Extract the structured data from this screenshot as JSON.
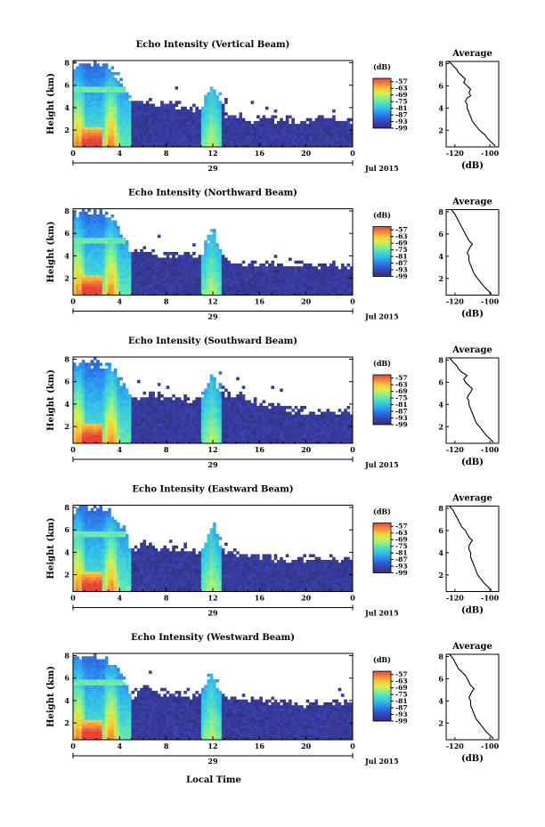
{
  "figure": {
    "bottom_xlabel": "Local Time"
  },
  "colors": {
    "colormap": [
      "#2e2f7a",
      "#3a3fa8",
      "#2c5fd8",
      "#2b8ff0",
      "#34c1e8",
      "#4de0c4",
      "#8ff08a",
      "#d8f04a",
      "#f8c63a",
      "#f7833a",
      "#e8423a"
    ]
  },
  "chart_data": [
    {
      "type": "heatmap",
      "title": "Echo Intensity (Vertical Beam)",
      "ylabel": "Height (km)",
      "xlabel": "",
      "x_ticks": [
        "0",
        "4",
        "8",
        "12",
        "16",
        "20",
        "0"
      ],
      "x_range": [
        0,
        24
      ],
      "y_ticks": [
        "2",
        "4",
        "6",
        "8"
      ],
      "y_range": [
        0.5,
        8.2
      ],
      "date_tick": "29",
      "date_label": "Jul 2015",
      "colorbar": {
        "unit": "(dB)",
        "ticks": [
          "-57",
          "-63",
          "-69",
          "-75",
          "-81",
          "-87",
          "-93",
          "-99"
        ],
        "range": [
          -99,
          -54
        ]
      },
      "envelope": [
        {
          "t": 0,
          "h": 7.8
        },
        {
          "t": 1,
          "h": 8.0
        },
        {
          "t": 2,
          "h": 8.0
        },
        {
          "t": 3,
          "h": 8.0
        },
        {
          "t": 4,
          "h": 6.5
        },
        {
          "t": 4.6,
          "h": 5.5
        },
        {
          "t": 5,
          "h": 4.5
        },
        {
          "t": 6,
          "h": 4.6
        },
        {
          "t": 7,
          "h": 4.4
        },
        {
          "t": 8,
          "h": 4.3
        },
        {
          "t": 9,
          "h": 4.2
        },
        {
          "t": 10,
          "h": 4.0
        },
        {
          "t": 11,
          "h": 3.9
        },
        {
          "t": 11.7,
          "h": 5.5
        },
        {
          "t": 12,
          "h": 6.5
        },
        {
          "t": 12.4,
          "h": 5.0
        },
        {
          "t": 13,
          "h": 3.6
        },
        {
          "t": 14,
          "h": 3.2
        },
        {
          "t": 15,
          "h": 3.0
        },
        {
          "t": 16,
          "h": 3.0
        },
        {
          "t": 17,
          "h": 3.0
        },
        {
          "t": 18,
          "h": 3.0
        },
        {
          "t": 19,
          "h": 2.8
        },
        {
          "t": 20,
          "h": 2.8
        },
        {
          "t": 21,
          "h": 3.0
        },
        {
          "t": 22,
          "h": 3.0
        },
        {
          "t": 23,
          "h": 3.0
        },
        {
          "t": 24,
          "h": 3.0
        }
      ],
      "bright_layer_km": 5.6,
      "average_profile": {
        "title": "Average",
        "xlabel": "(dB)",
        "x_ticks": [
          "-120",
          "-100"
        ],
        "x_range": [
          -125,
          -95
        ],
        "y_ticks": [
          "2",
          "4",
          "6",
          "8"
        ],
        "y_range": [
          0.5,
          8.2
        ],
        "x": [
          -97,
          -99,
          -101,
          -103,
          -106,
          -108,
          -110,
          -111,
          -112,
          -113,
          -113,
          -114,
          -113,
          -111,
          -112,
          -111,
          -113,
          -115,
          -114,
          -116,
          -118,
          -119,
          -121,
          -122,
          -124
        ],
        "y": [
          0.6,
          0.9,
          1.2,
          1.6,
          2.0,
          2.4,
          2.8,
          3.2,
          3.6,
          4.0,
          4.3,
          4.6,
          4.9,
          5.1,
          5.4,
          5.7,
          6.0,
          6.3,
          6.6,
          6.9,
          7.2,
          7.5,
          7.8,
          8.0,
          8.2
        ]
      }
    },
    {
      "type": "heatmap",
      "title": "Echo Intensity (Northward Beam)",
      "ylabel": "Height (km)",
      "xlabel": "",
      "x_ticks": [
        "0",
        "4",
        "8",
        "12",
        "16",
        "20",
        "0"
      ],
      "x_range": [
        0,
        24
      ],
      "y_ticks": [
        "2",
        "4",
        "6",
        "8"
      ],
      "y_range": [
        0.5,
        8.2
      ],
      "date_tick": "29",
      "date_label": "Jul 2015",
      "colorbar": {
        "unit": "(dB)",
        "ticks": [
          "-57",
          "-63",
          "-69",
          "-75",
          "-81",
          "-87",
          "-93",
          "-99"
        ],
        "range": [
          -99,
          -54
        ]
      },
      "envelope": [
        {
          "t": 0,
          "h": 7.8
        },
        {
          "t": 1,
          "h": 8.0
        },
        {
          "t": 2,
          "h": 7.9
        },
        {
          "t": 3,
          "h": 7.8
        },
        {
          "t": 4,
          "h": 6.5
        },
        {
          "t": 4.6,
          "h": 5.5
        },
        {
          "t": 5,
          "h": 4.2
        },
        {
          "t": 6,
          "h": 4.6
        },
        {
          "t": 7,
          "h": 4.2
        },
        {
          "t": 8,
          "h": 4.2
        },
        {
          "t": 9,
          "h": 4.0
        },
        {
          "t": 10,
          "h": 4.2
        },
        {
          "t": 11,
          "h": 4.0
        },
        {
          "t": 11.7,
          "h": 5.8
        },
        {
          "t": 12,
          "h": 6.8
        },
        {
          "t": 12.4,
          "h": 5.0
        },
        {
          "t": 13,
          "h": 3.8
        },
        {
          "t": 14,
          "h": 3.6
        },
        {
          "t": 15,
          "h": 3.4
        },
        {
          "t": 16,
          "h": 3.4
        },
        {
          "t": 17,
          "h": 3.4
        },
        {
          "t": 18,
          "h": 3.4
        },
        {
          "t": 19,
          "h": 3.2
        },
        {
          "t": 20,
          "h": 3.2
        },
        {
          "t": 21,
          "h": 3.2
        },
        {
          "t": 22,
          "h": 3.2
        },
        {
          "t": 23,
          "h": 3.2
        },
        {
          "t": 24,
          "h": 3.2
        }
      ],
      "bright_layer_km": 5.4,
      "average_profile": {
        "title": "Average",
        "xlabel": "(dB)",
        "x_ticks": [
          "-120",
          "-100"
        ],
        "x_range": [
          -125,
          -95
        ],
        "y_ticks": [
          "2",
          "4",
          "6",
          "8"
        ],
        "y_range": [
          0.5,
          8.2
        ],
        "x": [
          -99,
          -101,
          -103,
          -105,
          -107,
          -109,
          -110,
          -111,
          -112,
          -112,
          -113,
          -112,
          -111,
          -110,
          -112,
          -113,
          -114,
          -115,
          -116,
          -117,
          -118,
          -119,
          -120,
          -121,
          -122
        ],
        "y": [
          0.6,
          0.9,
          1.2,
          1.6,
          2.0,
          2.4,
          2.8,
          3.2,
          3.6,
          4.0,
          4.3,
          4.6,
          4.9,
          5.1,
          5.4,
          5.7,
          6.0,
          6.3,
          6.6,
          6.9,
          7.2,
          7.5,
          7.8,
          8.0,
          8.2
        ]
      }
    },
    {
      "type": "heatmap",
      "title": "Echo Intensity (Southward Beam)",
      "ylabel": "Height (km)",
      "xlabel": "",
      "x_ticks": [
        "0",
        "4",
        "8",
        "12",
        "16",
        "20",
        "0"
      ],
      "x_range": [
        0,
        24
      ],
      "y_ticks": [
        "2",
        "4",
        "6",
        "8"
      ],
      "y_range": [
        0.5,
        8.2
      ],
      "date_tick": "29",
      "date_label": "Jul 2015",
      "colorbar": {
        "unit": "(dB)",
        "ticks": [
          "-57",
          "-63",
          "-69",
          "-75",
          "-81",
          "-87",
          "-93",
          "-99"
        ],
        "range": [
          -99,
          -54
        ]
      },
      "envelope": [
        {
          "t": 0,
          "h": 7.6
        },
        {
          "t": 1,
          "h": 7.8
        },
        {
          "t": 2,
          "h": 7.6
        },
        {
          "t": 3,
          "h": 7.4
        },
        {
          "t": 4,
          "h": 6.2
        },
        {
          "t": 4.6,
          "h": 5.3
        },
        {
          "t": 5,
          "h": 4.2
        },
        {
          "t": 6,
          "h": 5.2
        },
        {
          "t": 7,
          "h": 4.8
        },
        {
          "t": 8,
          "h": 4.6
        },
        {
          "t": 9,
          "h": 4.6
        },
        {
          "t": 10,
          "h": 4.4
        },
        {
          "t": 11,
          "h": 4.6
        },
        {
          "t": 11.7,
          "h": 6.0
        },
        {
          "t": 12,
          "h": 6.8
        },
        {
          "t": 12.4,
          "h": 5.4
        },
        {
          "t": 13,
          "h": 5.2
        },
        {
          "t": 14,
          "h": 4.8
        },
        {
          "t": 15,
          "h": 4.6
        },
        {
          "t": 16,
          "h": 4.2
        },
        {
          "t": 17,
          "h": 4.0
        },
        {
          "t": 18,
          "h": 3.6
        },
        {
          "t": 19,
          "h": 3.4
        },
        {
          "t": 20,
          "h": 3.4
        },
        {
          "t": 21,
          "h": 3.4
        },
        {
          "t": 22,
          "h": 3.4
        },
        {
          "t": 23,
          "h": 3.4
        },
        {
          "t": 24,
          "h": 3.4
        }
      ],
      "bright_layer_km": 1.6,
      "average_profile": {
        "title": "Average",
        "xlabel": "(dB)",
        "x_ticks": [
          "-120",
          "-100"
        ],
        "x_range": [
          -125,
          -95
        ],
        "y_ticks": [
          "2",
          "4",
          "6",
          "8"
        ],
        "y_range": [
          0.5,
          8.2
        ],
        "x": [
          -98,
          -100,
          -102,
          -104,
          -106,
          -108,
          -109,
          -110,
          -111,
          -112,
          -112,
          -113,
          -112,
          -111,
          -110,
          -112,
          -114,
          -115,
          -113,
          -116,
          -118,
          -119,
          -121,
          -122,
          -123
        ],
        "y": [
          0.6,
          0.9,
          1.2,
          1.6,
          2.0,
          2.4,
          2.8,
          3.2,
          3.6,
          4.0,
          4.3,
          4.6,
          4.9,
          5.1,
          5.4,
          5.7,
          6.0,
          6.3,
          6.6,
          6.9,
          7.2,
          7.5,
          7.8,
          8.0,
          8.2
        ]
      }
    },
    {
      "type": "heatmap",
      "title": "Echo Intensity (Eastward Beam)",
      "ylabel": "Height (km)",
      "xlabel": "",
      "x_ticks": [
        "0",
        "4",
        "8",
        "12",
        "16",
        "20",
        "0"
      ],
      "x_range": [
        0,
        24
      ],
      "y_ticks": [
        "2",
        "4",
        "6",
        "8"
      ],
      "y_range": [
        0.5,
        8.2
      ],
      "date_tick": "29",
      "date_label": "Jul 2015",
      "colorbar": {
        "unit": "(dB)",
        "ticks": [
          "-57",
          "-63",
          "-69",
          "-75",
          "-81",
          "-87",
          "-93",
          "-99"
        ],
        "range": [
          -99,
          -54
        ]
      },
      "envelope": [
        {
          "t": 0,
          "h": 7.8
        },
        {
          "t": 1,
          "h": 8.0
        },
        {
          "t": 2,
          "h": 7.9
        },
        {
          "t": 3,
          "h": 7.7
        },
        {
          "t": 4,
          "h": 6.5
        },
        {
          "t": 4.6,
          "h": 5.5
        },
        {
          "t": 5,
          "h": 4.2
        },
        {
          "t": 6,
          "h": 4.8
        },
        {
          "t": 7,
          "h": 4.4
        },
        {
          "t": 8,
          "h": 4.4
        },
        {
          "t": 9,
          "h": 4.2
        },
        {
          "t": 10,
          "h": 4.2
        },
        {
          "t": 11,
          "h": 4.0
        },
        {
          "t": 11.7,
          "h": 6.0
        },
        {
          "t": 12,
          "h": 6.6
        },
        {
          "t": 12.4,
          "h": 5.2
        },
        {
          "t": 13,
          "h": 4.0
        },
        {
          "t": 14,
          "h": 3.8
        },
        {
          "t": 15,
          "h": 3.6
        },
        {
          "t": 16,
          "h": 3.6
        },
        {
          "t": 17,
          "h": 3.6
        },
        {
          "t": 18,
          "h": 3.4
        },
        {
          "t": 19,
          "h": 3.4
        },
        {
          "t": 20,
          "h": 3.4
        },
        {
          "t": 21,
          "h": 3.4
        },
        {
          "t": 22,
          "h": 3.4
        },
        {
          "t": 23,
          "h": 3.4
        },
        {
          "t": 24,
          "h": 3.4
        }
      ],
      "bright_layer_km": 5.6,
      "average_profile": {
        "title": "Average",
        "xlabel": "(dB)",
        "x_ticks": [
          "-120",
          "-100"
        ],
        "x_range": [
          -125,
          -95
        ],
        "y_ticks": [
          "2",
          "4",
          "6",
          "8"
        ],
        "y_range": [
          0.5,
          8.2
        ],
        "x": [
          -99,
          -101,
          -103,
          -105,
          -107,
          -108,
          -109,
          -110,
          -111,
          -111,
          -112,
          -112,
          -111,
          -110,
          -112,
          -113,
          -114,
          -116,
          -117,
          -118,
          -119,
          -120,
          -121,
          -122,
          -123
        ],
        "y": [
          0.6,
          0.9,
          1.2,
          1.6,
          2.0,
          2.4,
          2.8,
          3.2,
          3.6,
          4.0,
          4.3,
          4.6,
          4.9,
          5.1,
          5.4,
          5.7,
          6.0,
          6.3,
          6.6,
          6.9,
          7.2,
          7.5,
          7.8,
          8.0,
          8.2
        ]
      }
    },
    {
      "type": "heatmap",
      "title": "Echo Intensity (Westward Beam)",
      "ylabel": "Height (km)",
      "xlabel": "",
      "x_ticks": [
        "0",
        "4",
        "8",
        "12",
        "16",
        "20",
        "0"
      ],
      "x_range": [
        0,
        24
      ],
      "y_ticks": [
        "2",
        "4",
        "6",
        "8"
      ],
      "y_range": [
        0.5,
        8.2
      ],
      "date_tick": "29",
      "date_label": "Jul 2015",
      "colorbar": {
        "unit": "(dB)",
        "ticks": [
          "-57",
          "-63",
          "-69",
          "-75",
          "-81",
          "-87",
          "-93",
          "-99"
        ],
        "range": [
          -99,
          -54
        ]
      },
      "envelope": [
        {
          "t": 0,
          "h": 7.8
        },
        {
          "t": 1,
          "h": 8.0
        },
        {
          "t": 2,
          "h": 7.9
        },
        {
          "t": 3,
          "h": 7.7
        },
        {
          "t": 4,
          "h": 6.5
        },
        {
          "t": 4.6,
          "h": 5.5
        },
        {
          "t": 5,
          "h": 4.4
        },
        {
          "t": 6,
          "h": 5.6
        },
        {
          "t": 7,
          "h": 4.8
        },
        {
          "t": 8,
          "h": 4.6
        },
        {
          "t": 9,
          "h": 4.4
        },
        {
          "t": 10,
          "h": 4.6
        },
        {
          "t": 11,
          "h": 4.4
        },
        {
          "t": 11.7,
          "h": 6.2
        },
        {
          "t": 12,
          "h": 6.8
        },
        {
          "t": 12.4,
          "h": 5.4
        },
        {
          "t": 13,
          "h": 4.4
        },
        {
          "t": 14,
          "h": 4.2
        },
        {
          "t": 15,
          "h": 4.0
        },
        {
          "t": 16,
          "h": 4.2
        },
        {
          "t": 17,
          "h": 3.8
        },
        {
          "t": 18,
          "h": 3.8
        },
        {
          "t": 19,
          "h": 3.8
        },
        {
          "t": 20,
          "h": 3.8
        },
        {
          "t": 21,
          "h": 3.8
        },
        {
          "t": 22,
          "h": 3.8
        },
        {
          "t": 23,
          "h": 3.8
        },
        {
          "t": 24,
          "h": 3.8
        }
      ],
      "bright_layer_km": 5.6,
      "average_profile": {
        "title": "Average",
        "xlabel": "(dB)",
        "x_ticks": [
          "-120",
          "-100"
        ],
        "x_range": [
          -125,
          -95
        ],
        "y_ticks": [
          "2",
          "4",
          "6",
          "8"
        ],
        "y_range": [
          0.5,
          8.2
        ],
        "x": [
          -98,
          -100,
          -102,
          -104,
          -106,
          -108,
          -109,
          -110,
          -111,
          -111,
          -112,
          -111,
          -110,
          -109,
          -111,
          -112,
          -113,
          -114,
          -116,
          -118,
          -119,
          -120,
          -121,
          -122,
          -123
        ],
        "y": [
          0.6,
          0.9,
          1.2,
          1.6,
          2.0,
          2.4,
          2.8,
          3.2,
          3.6,
          4.0,
          4.3,
          4.6,
          4.9,
          5.1,
          5.4,
          5.7,
          6.0,
          6.3,
          6.6,
          6.9,
          7.2,
          7.5,
          7.8,
          8.0,
          8.2
        ]
      }
    }
  ]
}
